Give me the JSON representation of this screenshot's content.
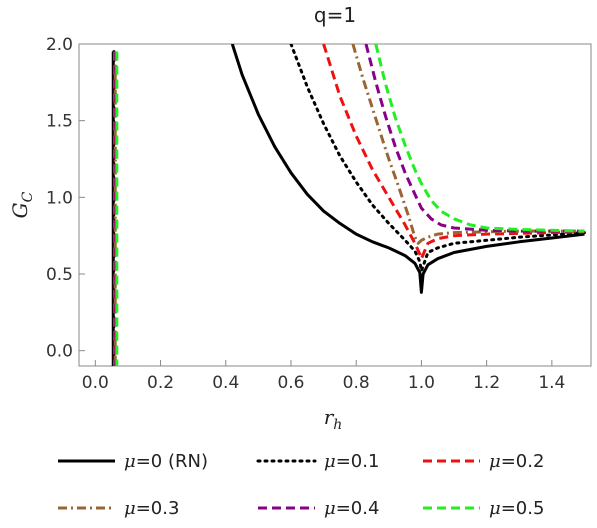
{
  "chart_data": {
    "type": "line",
    "title": "q=1",
    "xlabel": "r",
    "xlabel_sub": "h",
    "ylabel": "G",
    "ylabel_sub": "C",
    "xlim": [
      -0.05,
      1.52
    ],
    "ylim": [
      -0.1,
      2.0
    ],
    "x_ticks": [
      "0.0",
      "0.2",
      "0.4",
      "0.6",
      "0.8",
      "1.0",
      "1.2",
      "1.4"
    ],
    "y_ticks": [
      "0.0",
      "0.5",
      "1.0",
      "1.5",
      "2.0"
    ],
    "series": [
      {
        "name": "μ=0 (RN)",
        "mu_label": "μ",
        "label_rest": "=0 (RN)",
        "color": "#000000",
        "dash": "solid",
        "x_inner": 0.055,
        "x": [
          0.42,
          0.45,
          0.5,
          0.55,
          0.6,
          0.65,
          0.7,
          0.75,
          0.8,
          0.85,
          0.9,
          0.95,
          0.98,
          0.995,
          1.0,
          1.005,
          1.02,
          1.05,
          1.1,
          1.2,
          1.3,
          1.4,
          1.5
        ],
        "y": [
          2.0,
          1.8,
          1.54,
          1.33,
          1.16,
          1.02,
          0.91,
          0.83,
          0.76,
          0.71,
          0.67,
          0.62,
          0.57,
          0.51,
          0.38,
          0.5,
          0.56,
          0.6,
          0.64,
          0.68,
          0.71,
          0.735,
          0.76
        ]
      },
      {
        "name": "μ=0.1",
        "mu_label": "μ",
        "label_rest": "=0.1",
        "color": "#000000",
        "dash": "dotted",
        "x_inner": 0.057,
        "x": [
          0.6,
          0.65,
          0.7,
          0.75,
          0.8,
          0.85,
          0.9,
          0.95,
          0.98,
          0.995,
          1.0,
          1.02,
          1.05,
          1.1,
          1.2,
          1.3,
          1.4,
          1.5
        ],
        "y": [
          2.0,
          1.72,
          1.48,
          1.27,
          1.1,
          0.95,
          0.83,
          0.72,
          0.65,
          0.58,
          0.52,
          0.64,
          0.67,
          0.7,
          0.72,
          0.74,
          0.755,
          0.77
        ]
      },
      {
        "name": "μ=0.2",
        "mu_label": "μ",
        "label_rest": "=0.2",
        "color": "#ee1111",
        "dash": "dashed",
        "x_inner": 0.059,
        "x": [
          0.7,
          0.75,
          0.8,
          0.85,
          0.9,
          0.95,
          0.98,
          0.995,
          1.0,
          1.02,
          1.05,
          1.1,
          1.2,
          1.3,
          1.4,
          1.5
        ],
        "y": [
          2.0,
          1.66,
          1.4,
          1.18,
          1.0,
          0.82,
          0.7,
          0.63,
          0.6,
          0.7,
          0.73,
          0.75,
          0.76,
          0.765,
          0.77,
          0.775
        ]
      },
      {
        "name": "μ=0.3",
        "mu_label": "μ",
        "label_rest": "=0.3",
        "color": "#996633",
        "dash": "dashdot",
        "x_inner": 0.061,
        "x": [
          0.79,
          0.82,
          0.85,
          0.88,
          0.9,
          0.93,
          0.96,
          0.98,
          0.99,
          1.0,
          1.02,
          1.05,
          1.1,
          1.2,
          1.3,
          1.4,
          1.5
        ],
        "y": [
          2.0,
          1.78,
          1.58,
          1.38,
          1.25,
          1.07,
          0.88,
          0.74,
          0.7,
          0.72,
          0.74,
          0.76,
          0.77,
          0.775,
          0.78,
          0.78,
          0.78
        ]
      },
      {
        "name": "μ=0.4",
        "mu_label": "μ",
        "label_rest": "=0.4",
        "color": "#880088",
        "dash": "dashed",
        "x_inner": 0.063,
        "x": [
          0.83,
          0.86,
          0.89,
          0.92,
          0.95,
          0.98,
          1.0,
          1.03,
          1.06,
          1.1,
          1.2,
          1.3,
          1.4,
          1.5
        ],
        "y": [
          2.0,
          1.75,
          1.53,
          1.33,
          1.16,
          1.02,
          0.93,
          0.86,
          0.82,
          0.8,
          0.785,
          0.78,
          0.78,
          0.78
        ]
      },
      {
        "name": "μ=0.5",
        "mu_label": "μ",
        "label_rest": "=0.5",
        "color": "#22ee22",
        "dash": "dashed",
        "x_inner": 0.066,
        "x": [
          0.86,
          0.89,
          0.92,
          0.95,
          0.98,
          1.0,
          1.03,
          1.06,
          1.1,
          1.15,
          1.2,
          1.3,
          1.4,
          1.5
        ],
        "y": [
          2.0,
          1.74,
          1.52,
          1.34,
          1.18,
          1.09,
          0.98,
          0.91,
          0.86,
          0.82,
          0.8,
          0.79,
          0.785,
          0.78
        ]
      }
    ]
  }
}
